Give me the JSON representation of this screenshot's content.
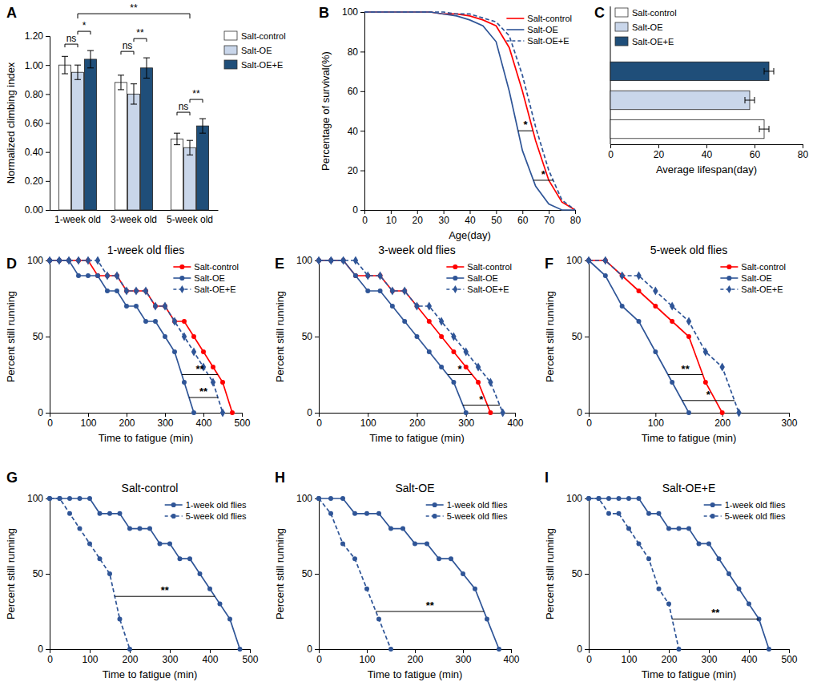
{
  "chart_data": [
    {
      "type": "bar",
      "panel_label": "A",
      "y_label": "Normalized climbing index",
      "categories": [
        "1-week old",
        "3-week old",
        "5-week old"
      ],
      "series": [
        {
          "name": "Salt-control",
          "color": "#ffffff",
          "values": [
            1.0,
            0.88,
            0.49
          ],
          "errors": [
            0.06,
            0.05,
            0.04
          ]
        },
        {
          "name": "Salt-OE",
          "color": "#c9d6ea",
          "values": [
            0.95,
            0.8,
            0.43
          ],
          "errors": [
            0.05,
            0.07,
            0.05
          ]
        },
        {
          "name": "Salt-OE+E",
          "color": "#1f4e79",
          "values": [
            1.04,
            0.98,
            0.58
          ],
          "errors": [
            0.06,
            0.07,
            0.05
          ]
        }
      ],
      "ylim": [
        0,
        1.2
      ],
      "yticks": [
        {
          "value": 0,
          "label": "0.00"
        },
        {
          "value": 0.2,
          "label": "0.20"
        },
        {
          "value": 0.4,
          "label": "0.40"
        },
        {
          "value": 0.6,
          "label": "0.60"
        },
        {
          "value": 0.8,
          "label": "0.80"
        },
        {
          "value": 1.0,
          "label": "1.00"
        },
        {
          "value": 1.2,
          "label": "1.20"
        }
      ],
      "legend": "right",
      "significance": [
        {
          "category": 0,
          "pair": [
            0,
            1
          ],
          "label": "ns"
        },
        {
          "category": 0,
          "pair": [
            1,
            2
          ],
          "label": "*"
        },
        {
          "category": 1,
          "pair": [
            0,
            1
          ],
          "label": "ns"
        },
        {
          "category": 1,
          "pair": [
            1,
            2
          ],
          "label": "**"
        },
        {
          "category": 2,
          "pair": [
            0,
            1
          ],
          "label": "ns"
        },
        {
          "category": 2,
          "pair": [
            1,
            2
          ],
          "label": "**"
        },
        {
          "categories": [
            0,
            2
          ],
          "label": "**"
        }
      ]
    },
    {
      "type": "line",
      "panel_label": "B",
      "x_label": "Age(day)",
      "y_label": "Percentage of survival(%)",
      "x": [
        0,
        5,
        10,
        15,
        20,
        25,
        30,
        35,
        40,
        45,
        50,
        55,
        60,
        65,
        70,
        75,
        80
      ],
      "series": [
        {
          "name": "Salt-control",
          "color": "#ff0000",
          "line_style": "solid",
          "values": [
            100,
            100,
            100,
            100,
            100,
            100,
            99,
            99,
            98,
            96,
            93,
            82,
            60,
            35,
            15,
            4,
            0
          ]
        },
        {
          "name": "Salt-OE",
          "color": "#2f5597",
          "line_style": "solid",
          "values": [
            100,
            100,
            100,
            100,
            100,
            100,
            99,
            98,
            96,
            93,
            85,
            60,
            30,
            12,
            3,
            0,
            0
          ]
        },
        {
          "name": "Salt-OE+E",
          "color": "#2f5597",
          "line_style": "dashed",
          "values": [
            100,
            100,
            100,
            100,
            100,
            100,
            100,
            99,
            99,
            97,
            95,
            88,
            68,
            42,
            20,
            5,
            0
          ]
        }
      ],
      "xlim": [
        0,
        80
      ],
      "xticks": [
        0,
        10,
        20,
        30,
        40,
        50,
        60,
        70,
        80
      ],
      "ylim": [
        0,
        100
      ],
      "yticks": [
        0,
        20,
        40,
        60,
        80,
        100
      ],
      "legend": "top-right",
      "significance": [
        {
          "pair": [
            1,
            0
          ],
          "y": 40,
          "label": "*"
        },
        {
          "pair": [
            1,
            2
          ],
          "y": 15,
          "label": "*"
        }
      ]
    },
    {
      "type": "bar",
      "orientation": "horizontal",
      "panel_label": "C",
      "x_label": "Average lifespan(day)",
      "categories": [
        "Salt-control",
        "Salt-OE",
        "Salt-OE+E"
      ],
      "values": [
        64,
        58,
        66
      ],
      "errors": [
        2,
        2,
        2
      ],
      "colors": [
        "#ffffff",
        "#c9d6ea",
        "#1f4e79"
      ],
      "xlim": [
        0,
        80
      ],
      "xticks": [
        0,
        20,
        40,
        60,
        80
      ],
      "legend": "top-left",
      "tick_labels": "x"
    },
    {
      "type": "line",
      "panel_label": "D",
      "title": "1-week old flies",
      "x_label": "Time to fatigue (min)",
      "y_label": "Percent still running",
      "series": [
        {
          "name": "Salt-control",
          "color": "#ff0000",
          "line_style": "solid",
          "marker": "circle",
          "x": [
            0,
            25,
            50,
            75,
            100,
            125,
            150,
            175,
            200,
            225,
            250,
            275,
            300,
            325,
            350,
            375,
            400,
            425,
            450,
            475
          ],
          "values": [
            100,
            100,
            100,
            100,
            100,
            90,
            90,
            90,
            80,
            80,
            80,
            70,
            70,
            60,
            60,
            50,
            40,
            30,
            20,
            0
          ]
        },
        {
          "name": "Salt-OE",
          "color": "#2f5597",
          "line_style": "solid",
          "marker": "circle",
          "x": [
            0,
            25,
            50,
            75,
            100,
            125,
            150,
            175,
            200,
            225,
            250,
            275,
            300,
            325,
            350,
            375
          ],
          "values": [
            100,
            100,
            100,
            90,
            90,
            90,
            80,
            80,
            70,
            70,
            60,
            60,
            50,
            40,
            20,
            0
          ]
        },
        {
          "name": "Salt-OE+E",
          "color": "#2f5597",
          "line_style": "dashed",
          "marker": "diamond",
          "x": [
            0,
            25,
            50,
            75,
            100,
            125,
            150,
            175,
            200,
            225,
            250,
            275,
            300,
            325,
            350,
            375,
            400,
            425,
            450
          ],
          "values": [
            100,
            100,
            100,
            100,
            100,
            100,
            90,
            90,
            80,
            80,
            80,
            70,
            70,
            60,
            50,
            40,
            30,
            20,
            0
          ]
        }
      ],
      "xlim": [
        0,
        500
      ],
      "xticks": [
        0,
        100,
        200,
        300,
        400,
        500
      ],
      "ylim": [
        0,
        100
      ],
      "yticks": [
        0,
        50,
        100
      ],
      "legend": "top-right",
      "significance": [
        {
          "pair": [
            1,
            0
          ],
          "y": 25,
          "label": "**"
        },
        {
          "pair": [
            1,
            2
          ],
          "y": 10,
          "label": "**"
        }
      ]
    },
    {
      "type": "line",
      "panel_label": "E",
      "title": "3-week old flies",
      "x_label": "Time to fatigue (min)",
      "y_label": "Percent still running",
      "series": [
        {
          "name": "Salt-control",
          "color": "#ff0000",
          "line_style": "solid",
          "marker": "circle",
          "x": [
            0,
            25,
            50,
            75,
            100,
            125,
            150,
            175,
            200,
            225,
            250,
            275,
            300,
            325,
            350
          ],
          "values": [
            100,
            100,
            100,
            90,
            90,
            90,
            80,
            80,
            70,
            60,
            50,
            40,
            30,
            20,
            0
          ]
        },
        {
          "name": "Salt-OE",
          "color": "#2f5597",
          "line_style": "solid",
          "marker": "circle",
          "x": [
            0,
            25,
            50,
            75,
            100,
            125,
            150,
            175,
            200,
            225,
            250,
            275,
            300
          ],
          "values": [
            100,
            100,
            100,
            90,
            80,
            80,
            70,
            60,
            50,
            40,
            30,
            20,
            0
          ]
        },
        {
          "name": "Salt-OE+E",
          "color": "#2f5597",
          "line_style": "dashed",
          "marker": "diamond",
          "x": [
            0,
            25,
            50,
            75,
            100,
            125,
            150,
            175,
            200,
            225,
            250,
            275,
            300,
            325,
            350,
            375
          ],
          "values": [
            100,
            100,
            100,
            100,
            90,
            90,
            80,
            80,
            70,
            70,
            60,
            50,
            40,
            30,
            20,
            0
          ]
        }
      ],
      "xlim": [
        0,
        400
      ],
      "xticks": [
        0,
        100,
        200,
        300,
        400
      ],
      "ylim": [
        0,
        100
      ],
      "yticks": [
        0,
        50,
        100
      ],
      "legend": "top-right",
      "significance": [
        {
          "pair": [
            1,
            0
          ],
          "y": 25,
          "label": "*"
        },
        {
          "pair": [
            1,
            2
          ],
          "y": 5,
          "label": "*"
        }
      ]
    },
    {
      "type": "line",
      "panel_label": "F",
      "title": "5-week old flies",
      "x_label": "Time to fatigue (min)",
      "y_label": "Percent still running",
      "series": [
        {
          "name": "Salt-control",
          "color": "#ff0000",
          "line_style": "solid",
          "marker": "circle",
          "x": [
            0,
            25,
            50,
            75,
            100,
            125,
            150,
            175,
            200
          ],
          "values": [
            100,
            100,
            90,
            80,
            70,
            60,
            50,
            20,
            0
          ]
        },
        {
          "name": "Salt-OE",
          "color": "#2f5597",
          "line_style": "solid",
          "marker": "circle",
          "x": [
            0,
            25,
            50,
            75,
            100,
            125,
            150
          ],
          "values": [
            100,
            90,
            70,
            60,
            40,
            20,
            0
          ]
        },
        {
          "name": "Salt-OE+E",
          "color": "#2f5597",
          "line_style": "dashed",
          "marker": "diamond",
          "x": [
            0,
            25,
            50,
            75,
            100,
            125,
            150,
            175,
            200,
            225
          ],
          "values": [
            100,
            100,
            90,
            90,
            80,
            70,
            60,
            40,
            30,
            0
          ]
        }
      ],
      "xlim": [
        0,
        300
      ],
      "xticks": [
        0,
        100,
        200,
        300
      ],
      "ylim": [
        0,
        100
      ],
      "yticks": [
        0,
        50,
        100
      ],
      "legend": "top-right",
      "significance": [
        {
          "pair": [
            1,
            0
          ],
          "y": 25,
          "label": "**"
        },
        {
          "pair": [
            1,
            2
          ],
          "y": 8,
          "label": "*"
        }
      ]
    },
    {
      "type": "line",
      "panel_label": "G",
      "title": "Salt-control",
      "x_label": "Time to fatigue (min)",
      "y_label": "Percent still running",
      "series": [
        {
          "name": "1-week old flies",
          "color": "#2f5597",
          "line_style": "solid",
          "marker": "circle",
          "x": [
            0,
            25,
            50,
            75,
            100,
            125,
            150,
            175,
            200,
            225,
            250,
            275,
            300,
            325,
            350,
            375,
            400,
            425,
            450,
            475
          ],
          "values": [
            100,
            100,
            100,
            100,
            100,
            90,
            90,
            90,
            80,
            80,
            80,
            70,
            70,
            60,
            60,
            50,
            40,
            30,
            20,
            0
          ]
        },
        {
          "name": "5-week old flies",
          "color": "#2f5597",
          "line_style": "dashed",
          "marker": "circle",
          "x": [
            0,
            25,
            50,
            75,
            100,
            125,
            150,
            175,
            200
          ],
          "values": [
            100,
            100,
            90,
            80,
            70,
            60,
            50,
            20,
            0
          ]
        }
      ],
      "xlim": [
        0,
        500
      ],
      "xticks": [
        0,
        100,
        200,
        300,
        400,
        500
      ],
      "ylim": [
        0,
        100
      ],
      "yticks": [
        0,
        50,
        100
      ],
      "legend": "top-right",
      "significance": [
        {
          "pair": [
            1,
            0
          ],
          "y": 35,
          "label": "**"
        }
      ]
    },
    {
      "type": "line",
      "panel_label": "H",
      "title": "Salt-OE",
      "x_label": "Time to fatigue (min)",
      "y_label": "Percent still running",
      "series": [
        {
          "name": "1-week old flies",
          "color": "#2f5597",
          "line_style": "solid",
          "marker": "circle",
          "x": [
            0,
            25,
            50,
            75,
            100,
            125,
            150,
            175,
            200,
            225,
            250,
            275,
            300,
            325,
            350,
            375
          ],
          "values": [
            100,
            100,
            100,
            90,
            90,
            90,
            80,
            80,
            70,
            70,
            60,
            60,
            50,
            40,
            20,
            0
          ]
        },
        {
          "name": "5-week old flies",
          "color": "#2f5597",
          "line_style": "dashed",
          "marker": "circle",
          "x": [
            0,
            25,
            50,
            75,
            100,
            125,
            150
          ],
          "values": [
            100,
            90,
            70,
            60,
            40,
            20,
            0
          ]
        }
      ],
      "xlim": [
        0,
        400
      ],
      "xticks": [
        0,
        100,
        200,
        300,
        400
      ],
      "ylim": [
        0,
        100
      ],
      "yticks": [
        0,
        50,
        100
      ],
      "legend": "top-right",
      "significance": [
        {
          "pair": [
            1,
            0
          ],
          "y": 25,
          "label": "**"
        }
      ]
    },
    {
      "type": "line",
      "panel_label": "I",
      "title": "Salt-OE+E",
      "x_label": "Time to fatigue (min)",
      "y_label": "Percent still running",
      "series": [
        {
          "name": "1-week old flies",
          "color": "#2f5597",
          "line_style": "solid",
          "marker": "circle",
          "x": [
            0,
            25,
            50,
            75,
            100,
            125,
            150,
            175,
            200,
            225,
            250,
            275,
            300,
            325,
            350,
            375,
            400,
            425,
            450
          ],
          "values": [
            100,
            100,
            100,
            100,
            100,
            100,
            90,
            90,
            80,
            80,
            80,
            70,
            70,
            60,
            50,
            40,
            30,
            20,
            0
          ]
        },
        {
          "name": "5-week old flies",
          "color": "#2f5597",
          "line_style": "dashed",
          "marker": "circle",
          "x": [
            0,
            25,
            50,
            75,
            100,
            125,
            150,
            175,
            200,
            225
          ],
          "values": [
            100,
            100,
            90,
            90,
            80,
            70,
            60,
            40,
            30,
            0
          ]
        }
      ],
      "xlim": [
        0,
        500
      ],
      "xticks": [
        0,
        100,
        200,
        300,
        400,
        500
      ],
      "ylim": [
        0,
        100
      ],
      "yticks": [
        0,
        50,
        100
      ],
      "legend": "top-right",
      "significance": [
        {
          "pair": [
            1,
            0
          ],
          "y": 20,
          "label": "**"
        }
      ]
    }
  ]
}
